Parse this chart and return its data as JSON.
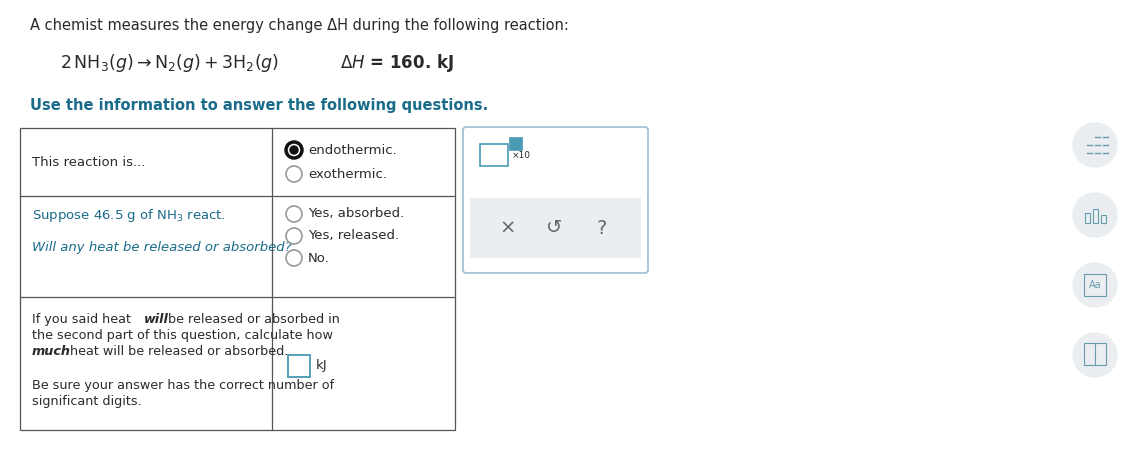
{
  "title_text": "A chemist measures the energy change ΔH during the following reaction:",
  "subtitle": "Use the information to answer the following questions.",
  "row1_left": "This reaction is...",
  "row1_options": [
    "endothermic.",
    "exothermic."
  ],
  "row2_left_line1": "Suppose 46.5 g of NH₃ react.",
  "row2_left_line2": "Will any heat be released or absorbed?",
  "row2_options": [
    "Yes, absorbed.",
    "Yes, released.",
    "No."
  ],
  "row3_left_lines_normal": [
    "If you said heat ",
    " be released or absorbed in",
    "the second part of this question, calculate how",
    " heat will be released or absorbed."
  ],
  "row3_italic_words": [
    "will",
    "much"
  ],
  "row3_bottom_lines": [
    "Be sure your answer has the correct number of",
    "significant digits."
  ],
  "row3_right_label": "kJ",
  "bg_color": "#ffffff",
  "table_border_color": "#555555",
  "text_color_black": "#2a2a2a",
  "text_color_blue": "#1a6b8a",
  "radio_border_thick": "#111111",
  "radio_border_thin": "#999999",
  "input_border_color": "#4a9ab5",
  "popup_bg": "#e8eef2",
  "popup_border": "#9bbfcf",
  "icon_bg": "#eaeef1",
  "icon_color": "#6a9aaf"
}
